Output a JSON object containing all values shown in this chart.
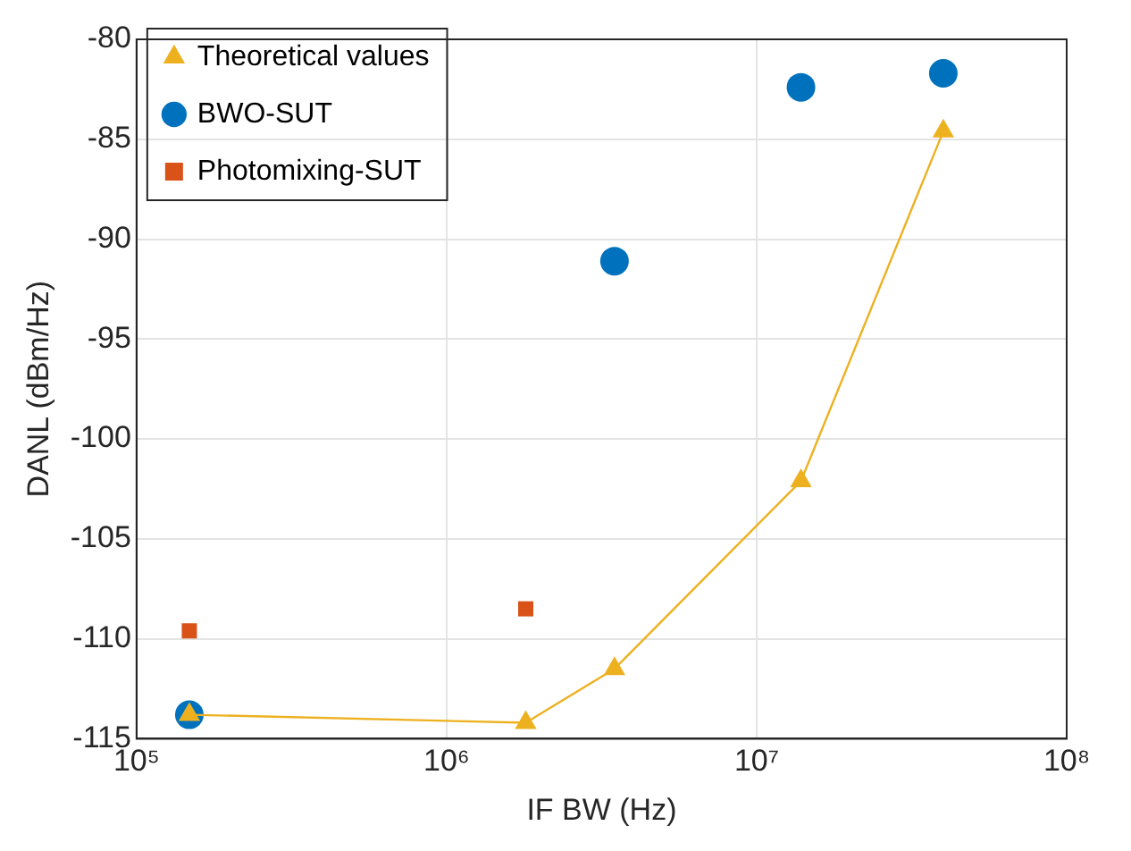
{
  "chart_data": {
    "type": "scatter",
    "xlabel": "IF BW (Hz)",
    "ylabel": "DANL (dBm/Hz)",
    "log": "x",
    "grid": true,
    "legend": "top left",
    "xlim": [
      100000,
      100000000
    ],
    "xticks": [
      {
        "value": 100000,
        "label": "10⁵"
      },
      {
        "value": 1000000,
        "label": "10⁶"
      },
      {
        "value": 10000000,
        "label": "10⁷"
      },
      {
        "value": 100000000,
        "label": "10⁸"
      }
    ],
    "ylim": [
      -115,
      -80
    ],
    "yticks": [
      -115,
      -110,
      -105,
      -100,
      -95,
      -90,
      -85,
      -80
    ],
    "series": [
      {
        "name": "BWO-SUT",
        "marker": "circle",
        "color": "#0072bd",
        "x": [
          148000,
          3480000,
          13900000,
          40000000
        ],
        "values": [
          -113.8,
          -91.1,
          -82.4,
          -81.7
        ]
      },
      {
        "name": "Photomixing-SUT",
        "marker": "square",
        "color": "#d95319",
        "x": [
          148000,
          1800000
        ],
        "values": [
          -109.6,
          -108.5
        ]
      },
      {
        "name": "Theoretical values",
        "type": "line",
        "marker": "triangle",
        "line_style": "solid",
        "color": "#edb120",
        "x": [
          148000,
          1800000,
          3480000,
          13900000,
          40000000
        ],
        "values": [
          -113.8,
          -114.2,
          -111.5,
          -102.1,
          -84.6
        ]
      }
    ]
  }
}
